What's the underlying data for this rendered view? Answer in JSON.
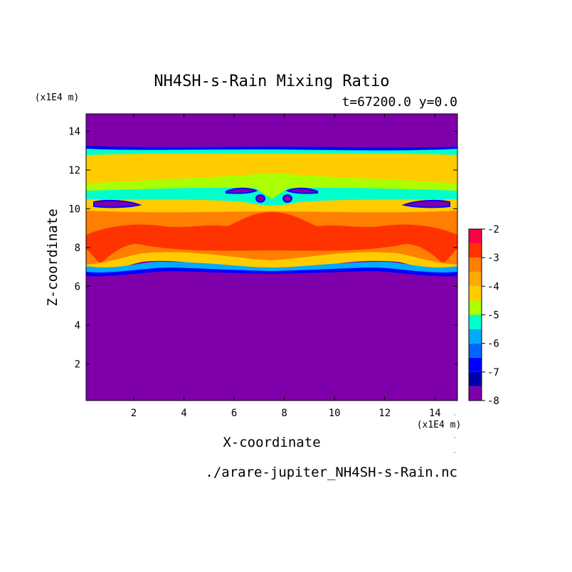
{
  "chart_data": {
    "type": "heatmap",
    "title": "NH4SH-s-Rain Mixing Ratio",
    "subtitle": "t=67200.0 y=0.0",
    "xlabel": "X-coordinate",
    "ylabel": "Z-coordinate",
    "x_unit": "(x1E4 m)",
    "y_unit": "(x1E4 m)",
    "xlim": [
      0.1,
      14.9
    ],
    "ylim": [
      0.1,
      14.9
    ],
    "x_ticks": [
      "2",
      "4",
      "6",
      "8",
      "10",
      "12",
      "14"
    ],
    "y_ticks": [
      "2",
      "4",
      "6",
      "8",
      "10",
      "12",
      "14"
    ],
    "colorbar": {
      "ticks": [
        "-2",
        "-3",
        "-4",
        "-5",
        "-6",
        "-7",
        "-8"
      ],
      "levels": [
        -8,
        -7.5,
        -7,
        -6.5,
        -6,
        -5.5,
        -5,
        -4.5,
        -4,
        -3.5,
        -3,
        -2.5,
        -2
      ],
      "colors": [
        "#7f00aa",
        "#0000aa",
        "#0000ff",
        "#0066ff",
        "#00aaff",
        "#00ffcc",
        "#aaff00",
        "#ffcc00",
        "#ffaa00",
        "#ff7f00",
        "#ff3300",
        "#ff0044",
        "#ffaaaa"
      ]
    },
    "source_file": "./arare-jupiter_NH4SH-s-Rain.nc",
    "layers": [
      {
        "z_bottom": 0.1,
        "z_top": 6.7,
        "level": -8,
        "color": "#7f00aa"
      },
      {
        "z_bottom": 6.7,
        "z_top": 7.1,
        "level": -6,
        "color": "#00aaff"
      },
      {
        "z_bottom": 7.1,
        "z_top": 7.5,
        "level": -4.5,
        "color": "#ffcc00"
      },
      {
        "z_bottom": 7.5,
        "z_top": 9.8,
        "level": -3.5,
        "color": "#ff7f00"
      },
      {
        "z_bottom": 8.0,
        "z_top": 9.2,
        "level": -3,
        "color": "#ff3300"
      },
      {
        "z_bottom": 9.8,
        "z_top": 10.3,
        "level": -4.5,
        "color": "#ffcc00"
      },
      {
        "z_bottom": 10.3,
        "z_top": 11.3,
        "level": -5,
        "color": "#aaff00"
      },
      {
        "z_bottom": 11.3,
        "z_top": 12.8,
        "level": -4.5,
        "color": "#ffcc00"
      },
      {
        "z_bottom": 12.8,
        "z_top": 13.2,
        "level": -5.5,
        "color": "#00ffcc"
      },
      {
        "z_bottom": 13.2,
        "z_top": 14.9,
        "level": -8,
        "color": "#7f00aa"
      }
    ]
  }
}
